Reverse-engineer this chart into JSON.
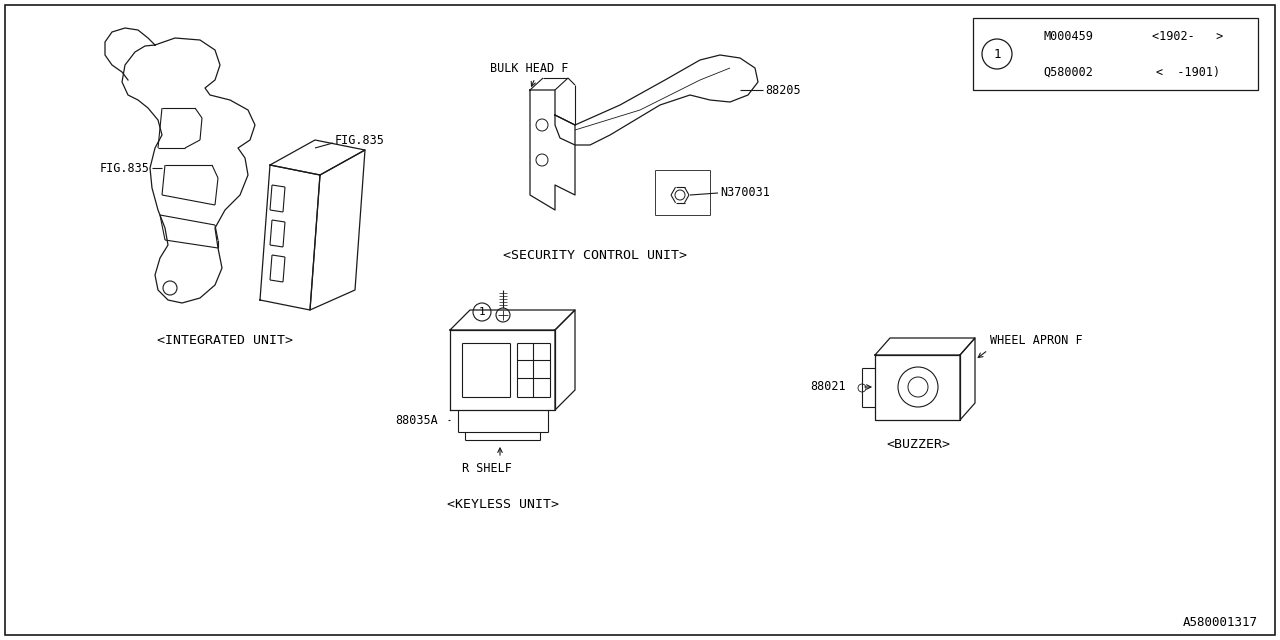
{
  "bg_color": "#ffffff",
  "line_color": "#1a1a1a",
  "text_color": "#000000",
  "part_number_bottom_right": "A580001317",
  "table": {
    "circle_label": "1",
    "rows": [
      {
        "part": "Q580002",
        "range": "<  -1901)"
      },
      {
        "part": "M000459",
        "range": "<1902-   >"
      }
    ]
  },
  "labels": {
    "integrated_unit": "<INTEGRATED UNIT>",
    "security_control_unit": "<SECURITY CONTROL UNIT>",
    "keyless_unit": "<KEYLESS UNIT>",
    "buzzer": "<BUZZER>"
  },
  "part_labels": {
    "fig835_left": "FIG.835",
    "fig835_right": "FIG.835",
    "part_88205": "88205",
    "part_N370031": "N370031",
    "part_88035A": "88035A",
    "part_88021": "88021",
    "bulk_head_f": "BULK HEAD F",
    "r_shelf": "R SHELF",
    "wheel_apron_f": "WHEEL APRON F"
  }
}
